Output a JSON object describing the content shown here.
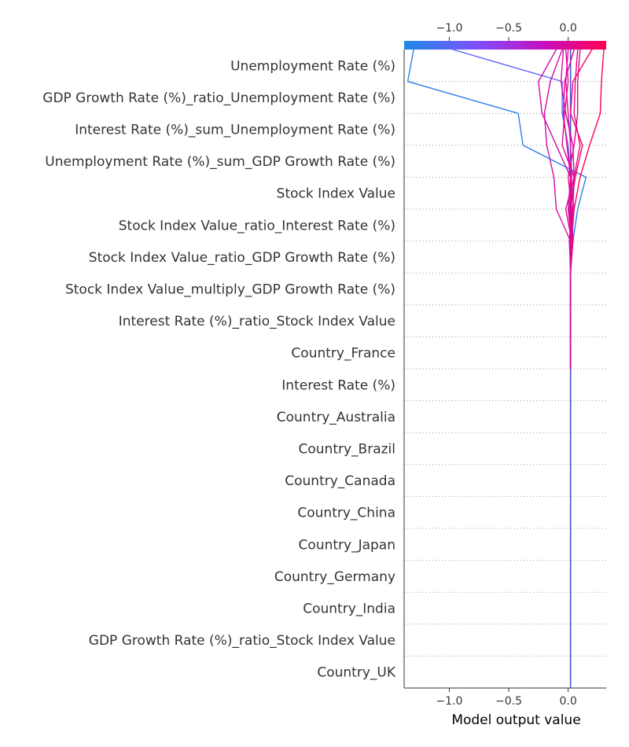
{
  "chart_data": {
    "type": "decision-plot",
    "xlabel": "Model output value",
    "xlim": [
      -1.38,
      0.32
    ],
    "x_ticks": [
      -1.0,
      -0.5,
      0.0
    ],
    "x_tick_labels": [
      "−1.0",
      "−0.5",
      "0.0"
    ],
    "base_value": 0.02,
    "colorbar": {
      "position": "top",
      "colors": [
        "#1e88e5",
        "#7c52ff",
        "#c80ebf",
        "#ff0052"
      ]
    },
    "features": [
      "Unemployment Rate (%)",
      "GDP Growth Rate (%)_ratio_Unemployment Rate (%)",
      "Interest Rate (%)_sum_Unemployment Rate (%)",
      "Unemployment Rate (%)_sum_GDP Growth Rate (%)",
      "Stock Index Value",
      "Stock Index Value_ratio_Interest Rate (%)",
      "Stock Index Value_ratio_GDP Growth Rate (%)",
      "Stock Index Value_multiply_GDP Growth Rate (%)",
      "Interest Rate (%)_ratio_Stock Index Value",
      "Country_France",
      "Interest Rate (%)",
      "Country_Australia",
      "Country_Brazil",
      "Country_Canada",
      "Country_China",
      "Country_Japan",
      "Country_Germany",
      "Country_India",
      "GDP Growth Rate (%)_ratio_Stock Index Value",
      "Country_UK"
    ],
    "samples": [
      {
        "output": -1.3,
        "path": [
          -1.3,
          -1.35,
          -0.42,
          -0.38,
          0.15,
          0.08,
          0.04,
          0.02,
          0.02,
          0.02,
          0.02
        ]
      },
      {
        "output": -0.97,
        "path": [
          -0.97,
          -0.05,
          -0.05,
          0.0,
          0.02,
          0.05,
          0.03,
          0.02,
          0.02,
          0.02,
          0.02
        ]
      },
      {
        "output": 0.3,
        "path": [
          0.3,
          0.28,
          0.27,
          0.18,
          0.1,
          0.05,
          0.02,
          0.02,
          0.02,
          0.02,
          0.02
        ]
      },
      {
        "output": 0.1,
        "path": [
          0.1,
          0.08,
          0.08,
          0.05,
          0.0,
          0.03,
          0.04,
          0.02,
          0.02,
          0.02,
          0.02
        ]
      },
      {
        "output": 0.08,
        "path": [
          0.08,
          0.06,
          0.05,
          0.1,
          0.05,
          -0.02,
          0.03,
          0.02,
          0.02,
          0.02,
          0.02
        ]
      },
      {
        "output": -0.05,
        "path": [
          -0.05,
          -0.15,
          -0.2,
          -0.18,
          -0.12,
          -0.1,
          0.02,
          0.02,
          0.02,
          0.02,
          0.02
        ]
      },
      {
        "output": -0.1,
        "path": [
          -0.1,
          -0.25,
          -0.22,
          -0.1,
          0.02,
          0.0,
          0.03,
          0.02,
          0.02,
          0.02,
          0.02
        ]
      },
      {
        "output": 0.2,
        "path": [
          0.2,
          0.04,
          0.02,
          0.12,
          0.06,
          0.02,
          0.03,
          0.02,
          0.02,
          0.02,
          0.02
        ]
      },
      {
        "output": -0.02,
        "path": [
          -0.02,
          0.0,
          -0.03,
          -0.05,
          0.05,
          0.02,
          0.02,
          0.02,
          0.02,
          0.02,
          0.02
        ]
      },
      {
        "output": 0.0,
        "path": [
          0.0,
          -0.02,
          0.0,
          0.02,
          0.03,
          0.01,
          0.02,
          0.02,
          0.02,
          0.02,
          0.02
        ]
      },
      {
        "output": 0.05,
        "path": [
          0.05,
          -0.03,
          -0.04,
          -0.01,
          0.02,
          0.03,
          0.01,
          0.02,
          0.02,
          0.02,
          0.02
        ]
      },
      {
        "output": -0.04,
        "path": [
          -0.04,
          -0.06,
          -0.02,
          0.04,
          0.05,
          0.04,
          0.02,
          0.02,
          0.02,
          0.02,
          0.02
        ]
      }
    ]
  }
}
